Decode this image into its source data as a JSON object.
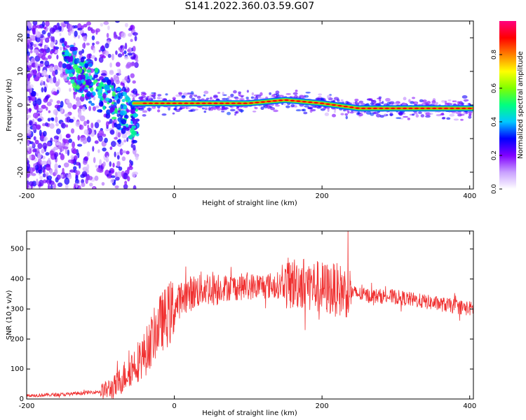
{
  "title": "S141.2022.360.03.59.G07",
  "chart_data": [
    {
      "type": "heatmap",
      "xlabel": "Height of straight line (km)",
      "ylabel": "Frequency (Hz)",
      "xlim": [
        -200,
        405
      ],
      "ylim": [
        -25,
        25
      ],
      "xticks": [
        -200,
        0,
        200,
        400
      ],
      "yticks": [
        -20,
        -10,
        0,
        10,
        20
      ],
      "colorbar": {
        "label": "Normalized spectral amplitude",
        "range": [
          0,
          1
        ],
        "ticks": [
          0.0,
          0.2,
          0.4,
          0.6,
          0.8
        ],
        "tick_labels": [
          "0.0",
          "0.2",
          "0.4",
          "0.6",
          "0.8"
        ],
        "colors": [
          "#ffffff",
          "#c9a0ff",
          "#8000ff",
          "#0000ff",
          "#00c8ff",
          "#00ff80",
          "#80ff00",
          "#ffff00",
          "#ff8000",
          "#ff0000",
          "#ff0080"
        ]
      },
      "ridge": {
        "x": [
          -50,
          0,
          50,
          100,
          150,
          200,
          250,
          300,
          350,
          405
        ],
        "freq": [
          0.5,
          0.5,
          0.5,
          0.5,
          1.5,
          0.5,
          -1,
          -1,
          -1,
          -1
        ]
      }
    },
    {
      "type": "line",
      "xlabel": "Height of straight line (km)",
      "ylabel": "SNR (10 * v/v)",
      "xlim": [
        -200,
        405
      ],
      "ylim": [
        0,
        560
      ],
      "xticks": [
        -200,
        0,
        200,
        400
      ],
      "yticks": [
        0,
        100,
        200,
        300,
        400,
        500
      ],
      "line_color": "#f03030",
      "envelope": {
        "x": [
          -200,
          -150,
          -100,
          -80,
          -60,
          -40,
          -20,
          0,
          10,
          20,
          40,
          60,
          100,
          150,
          170,
          200,
          230,
          260,
          300,
          350,
          405
        ],
        "y": [
          12,
          15,
          25,
          40,
          100,
          150,
          250,
          300,
          340,
          350,
          370,
          370,
          375,
          380,
          390,
          370,
          360,
          345,
          340,
          320,
          300
        ]
      }
    }
  ]
}
